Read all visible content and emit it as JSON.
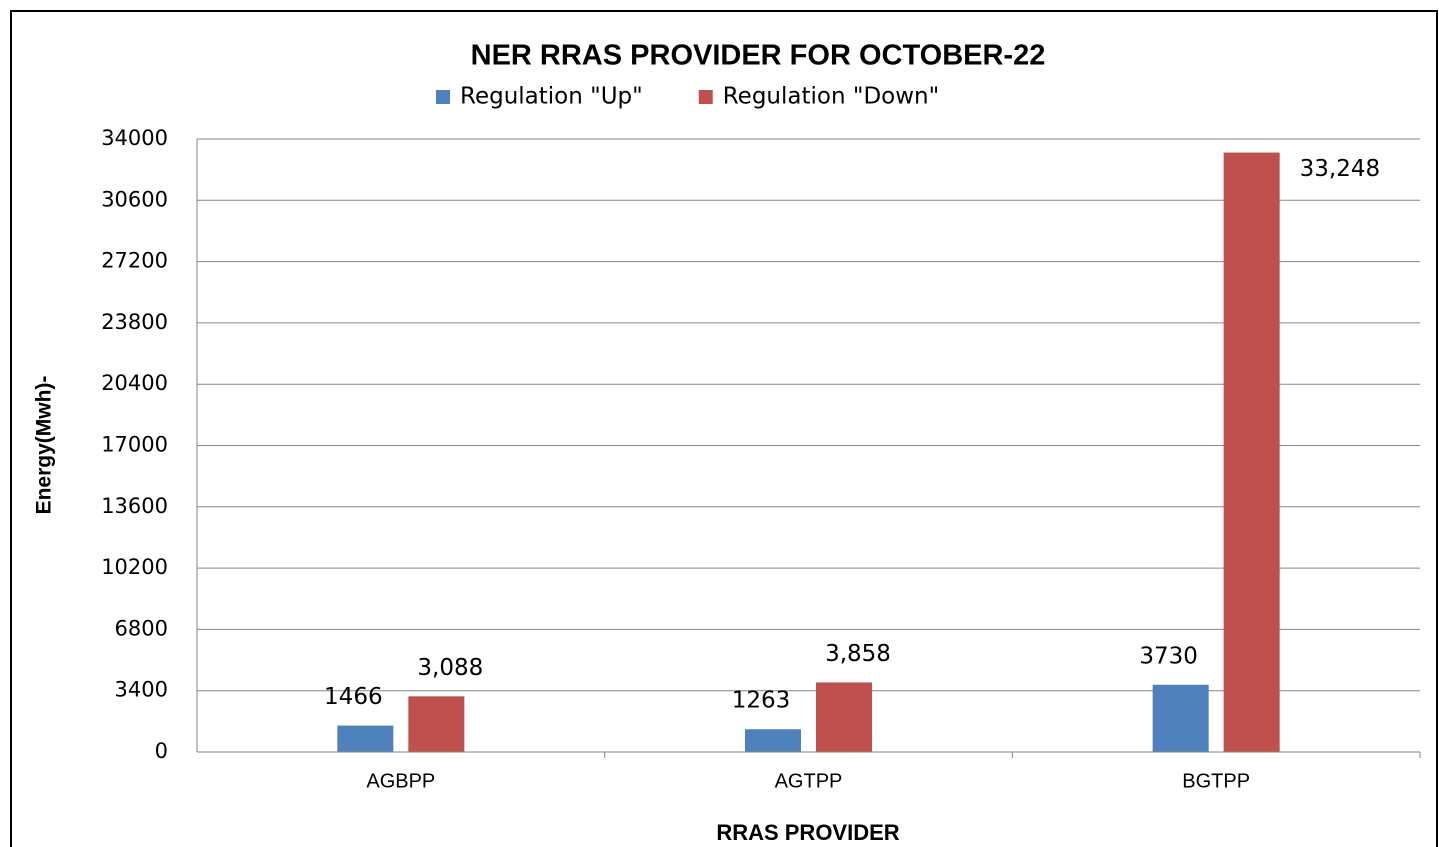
{
  "chart_data": {
    "type": "bar",
    "title": "NER RRAS PROVIDER FOR OCTOBER-22",
    "x_label": "RRAS PROVIDER",
    "y_label": "Energy(Mwh)-",
    "categories": [
      "AGBPP",
      "AGTPP",
      "BGTPP"
    ],
    "series": [
      {
        "name": "Regulation \"Up\"",
        "color": "#4f81bd",
        "values": [
          1466,
          1263,
          3730
        ]
      },
      {
        "name": "Regulation \"Down\"",
        "color": "#c0504d",
        "values": [
          3088,
          3858,
          33248
        ],
        "value_labels": [
          "3,088",
          "3,858",
          "33,248"
        ]
      }
    ],
    "ylim": [
      0,
      34000
    ],
    "yticks": [
      0,
      3400,
      6800,
      10200,
      13600,
      17000,
      20400,
      23800,
      27200,
      30600,
      34000
    ],
    "grid": true,
    "legend": "top"
  }
}
